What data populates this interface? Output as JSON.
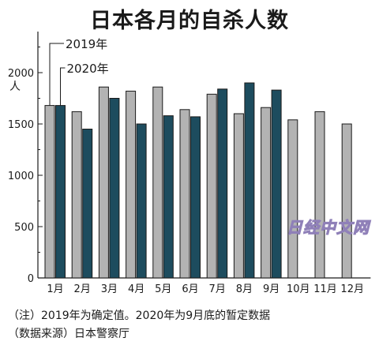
{
  "title": "日本各月的自杀人数",
  "chart_data": {
    "type": "bar",
    "categories": [
      "1月",
      "2月",
      "3月",
      "4月",
      "5月",
      "6月",
      "7月",
      "8月",
      "9月",
      "10月",
      "11月",
      "12月"
    ],
    "series": [
      {
        "name": "2019年",
        "color": "#b3b3b3",
        "values": [
          1680,
          1620,
          1860,
          1820,
          1860,
          1640,
          1790,
          1600,
          1660,
          1540,
          1620,
          1500
        ]
      },
      {
        "name": "2020年",
        "color": "#1d4c5e",
        "values": [
          1680,
          1450,
          1750,
          1500,
          1580,
          1570,
          1840,
          1900,
          1830,
          null,
          null,
          null
        ]
      }
    ],
    "ylim": [
      0,
      2400
    ],
    "yticks": [
      "0",
      "500",
      "1000",
      "1500",
      "2000"
    ],
    "ylabel": "人",
    "legend": "top-left",
    "grid": false
  },
  "notes": {
    "line1": "（注）2019年为确定值。2020年为9月底的暂定数据",
    "line2": "（数据来源）日本警察厅"
  },
  "watermark": "日经中文网"
}
